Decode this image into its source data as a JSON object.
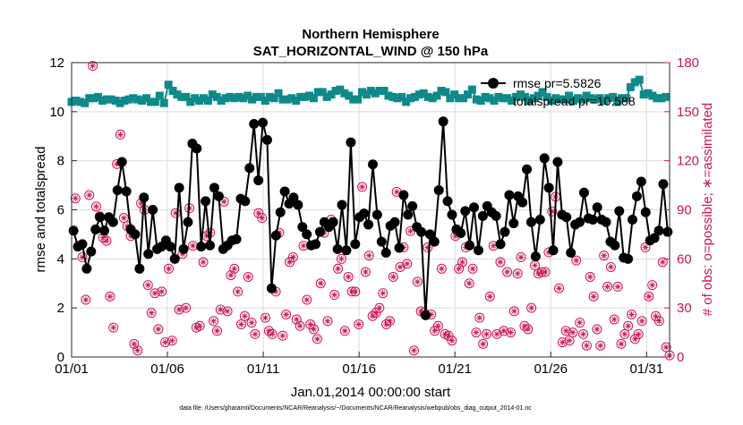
{
  "chart_data": {
    "type": "line",
    "title": "Northern Hemisphere",
    "subtitle": "SAT_HORIZONTAL_WIND @ 150 hPa",
    "xlabel": "Jan.01,2014 00:00:00 start",
    "ylabel": "rmse and totalspread",
    "ylabel_right": "# of obs: o=possible; ∗=assimilated",
    "footer": "data file: /Users/gharamti/Documents/NCAR/Reanalysis/~/Documents/NCAR/Reanalysis/webpub/obs_diag_output_2014-01.nc",
    "xlim": [
      1,
      32.2
    ],
    "ylim": [
      0,
      12
    ],
    "ylim_right": [
      0,
      180
    ],
    "xticks": [
      1,
      6,
      11,
      16,
      21,
      26,
      31
    ],
    "xtick_labels": [
      "01/01",
      "01/06",
      "01/11",
      "01/16",
      "01/21",
      "01/26",
      "01/31"
    ],
    "yticks": [
      0,
      2,
      4,
      6,
      8,
      10,
      12
    ],
    "yticks_right": [
      0,
      30,
      60,
      90,
      120,
      150,
      180
    ],
    "grid": true,
    "legend_position": "top-right",
    "colors": {
      "rmse": "#000000",
      "spread": "#0f8a8a",
      "obs": "#c8174f"
    },
    "series": [
      {
        "name": "rmse pr=5.5826",
        "axis": "left",
        "marker": "filled-circle",
        "values": [
          5.15,
          4.5,
          4.6,
          3.6,
          4.3,
          5.2,
          5.7,
          5.15,
          5.7,
          5.5,
          6.8,
          7.95,
          6.75,
          5.2,
          5.0,
          3.6,
          6.5,
          4.2,
          6.0,
          4.4,
          4.5,
          4.75,
          4.5,
          4.0,
          6.9,
          4.4,
          5.5,
          8.7,
          8.5,
          4.5,
          6.35,
          4.55,
          6.9,
          6.55,
          4.4,
          4.55,
          4.75,
          4.8,
          6.45,
          6.35,
          7.7,
          9.5,
          7.2,
          9.55,
          8.85,
          2.8,
          4.95,
          5.9,
          6.75,
          6.25,
          6.5,
          6.2,
          5.3,
          5.0,
          4.55,
          4.6,
          5.1,
          5.5,
          5.3,
          5.5,
          4.4,
          6.2,
          4.35,
          8.75,
          4.6,
          5.7,
          5.85,
          5.4,
          7.85,
          5.8,
          4.7,
          4.25,
          5.35,
          5.5,
          4.45,
          6.6,
          5.8,
          6.15,
          5.3,
          5.1,
          1.7,
          5.0,
          4.7,
          6.8,
          9.6,
          6.35,
          5.8,
          5.2,
          5.05,
          5.95,
          4.55,
          6.1,
          4.35,
          5.75,
          6.15,
          5.9,
          5.75,
          4.6,
          5.1,
          6.6,
          5.45,
          6.55,
          6.3,
          7.65,
          5.5,
          4.1,
          5.6,
          8.1,
          6.9,
          4.35,
          7.95,
          5.8,
          5.7,
          4.25,
          5.4,
          5.5,
          6.7,
          5.65,
          5.6,
          6.1,
          5.6,
          5.5,
          4.7,
          4.55,
          5.95,
          4.05,
          4.0,
          5.6,
          6.55,
          7.15,
          5.9,
          4.75,
          4.85,
          5.15,
          7.05,
          5.1
        ]
      },
      {
        "name": "totalspread pr=10.588",
        "axis": "left",
        "marker": "filled-square",
        "values": [
          10.4,
          10.45,
          10.4,
          10.35,
          10.55,
          10.55,
          10.6,
          10.45,
          10.5,
          10.5,
          10.45,
          10.35,
          10.45,
          10.5,
          10.55,
          10.5,
          10.45,
          10.55,
          10.4,
          10.4,
          10.65,
          10.35,
          11.1,
          10.85,
          10.7,
          10.6,
          10.6,
          10.4,
          10.55,
          10.45,
          10.55,
          10.45,
          10.7,
          10.6,
          10.45,
          10.55,
          10.6,
          10.55,
          10.6,
          10.55,
          10.65,
          10.5,
          10.6,
          10.6,
          10.45,
          10.6,
          10.55,
          10.75,
          10.5,
          10.5,
          10.55,
          10.45,
          10.6,
          10.6,
          10.65,
          10.55,
          10.8,
          10.8,
          10.6,
          10.7,
          10.85,
          10.9,
          10.75,
          10.65,
          10.5,
          10.5,
          10.8,
          10.7,
          10.85,
          10.75,
          10.85,
          10.85,
          10.65,
          10.6,
          10.55,
          10.6,
          10.4,
          10.55,
          10.6,
          10.7,
          10.75,
          10.6,
          10.55,
          10.65,
          10.85,
          10.8,
          10.55,
          10.7,
          10.55,
          10.55,
          10.7,
          10.9,
          10.5,
          10.45,
          10.6,
          10.55,
          10.45,
          10.6,
          10.55,
          10.55,
          10.45,
          10.6,
          10.7,
          10.6,
          10.45,
          10.55,
          10.65,
          10.8,
          10.6,
          10.45,
          10.55,
          10.5,
          10.5,
          10.65,
          10.45,
          10.55,
          10.5,
          10.65,
          10.55,
          10.5,
          10.55,
          10.45,
          10.55,
          10.6,
          10.4,
          10.55,
          10.55,
          11.0,
          11.2,
          11.3,
          10.7,
          10.75,
          10.65,
          10.55,
          10.55,
          10.6
        ]
      },
      {
        "name": "obs assimilated",
        "axis": "right",
        "marker": "asterisk-circle",
        "values": [
          97,
          68,
          61,
          35,
          99,
          178,
          92,
          86,
          73,
          71,
          37,
          18,
          118,
          136,
          85,
          80,
          74,
          8,
          4,
          94,
          90,
          44,
          27,
          39,
          17,
          40,
          9,
          54,
          10,
          88,
          29,
          63,
          30,
          91,
          68,
          18,
          19,
          58,
          74,
          76,
          22,
          16,
          29,
          95,
          28,
          50,
          54,
          40,
          20,
          25,
          49,
          21,
          14,
          88,
          85,
          24,
          16,
          14,
          40,
          76,
          13,
          26,
          58,
          61,
          23,
          19,
          68,
          35,
          20,
          17,
          11,
          45,
          76,
          22,
          84,
          38,
          54,
          60,
          16,
          49,
          40,
          40,
          20,
          104,
          52,
          62,
          25,
          27,
          30,
          39,
          20,
          22,
          49,
          101,
          55,
          67,
          57,
          77,
          4,
          46,
          28,
          27,
          67,
          26,
          16,
          19,
          54,
          14,
          13,
          10,
          74,
          54,
          58,
          67,
          45,
          54,
          15,
          24,
          8,
          14,
          37,
          68,
          14,
          58,
          16,
          52,
          15,
          28,
          51,
          61,
          19,
          17,
          30,
          56,
          51,
          52,
          52,
          64,
          89,
          98,
          42,
          9,
          16,
          10,
          15,
          59,
          21,
          14,
          7,
          49,
          37,
          17,
          7,
          62,
          43,
          55,
          23,
          43,
          8,
          14,
          19,
          26,
          11,
          14,
          22,
          67,
          37,
          44,
          25,
          22,
          58,
          6,
          1
        ]
      }
    ]
  }
}
